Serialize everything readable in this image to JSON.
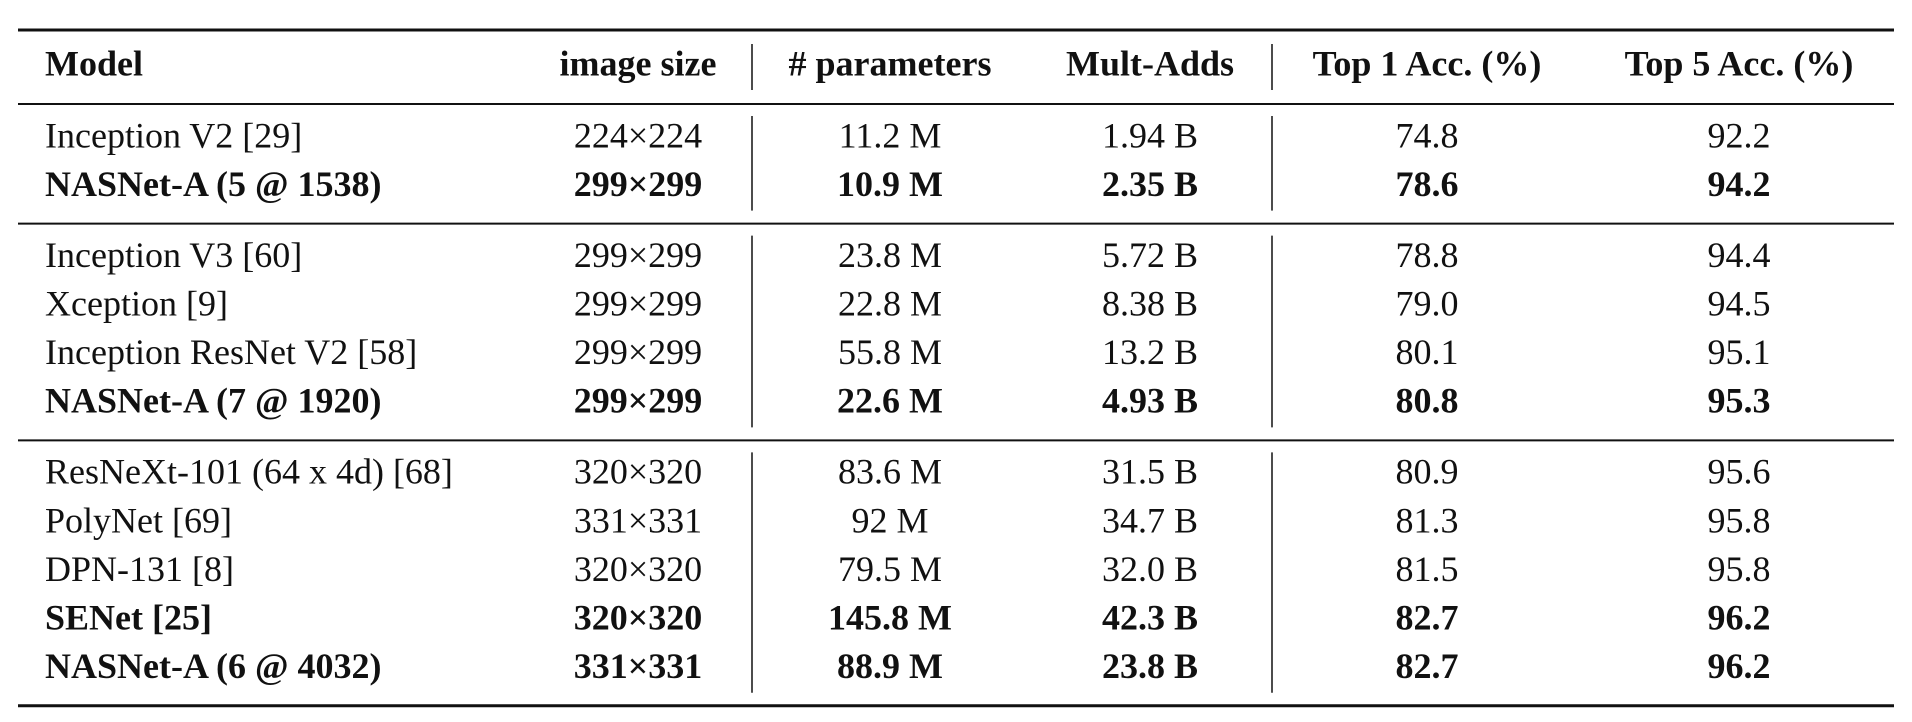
{
  "table": {
    "header": [
      "Model",
      "image size",
      "# parameters",
      "Mult-Adds",
      "Top 1 Acc. (%)",
      "Top 5 Acc. (%)"
    ],
    "groups": [
      [
        {
          "cells": [
            "Inception V2 [29]",
            "224×224",
            "11.2 M",
            "1.94 B",
            "74.8",
            "92.2"
          ],
          "bold": false
        },
        {
          "cells": [
            "NASNet-A (5 @ 1538)",
            "299×299",
            "10.9 M",
            "2.35 B",
            "78.6",
            "94.2"
          ],
          "bold": true
        }
      ],
      [
        {
          "cells": [
            "Inception V3 [60]",
            "299×299",
            "23.8 M",
            "5.72 B",
            "78.8",
            "94.4"
          ],
          "bold": false
        },
        {
          "cells": [
            "Xception [9]",
            "299×299",
            "22.8 M",
            "8.38 B",
            "79.0",
            "94.5"
          ],
          "bold": false
        },
        {
          "cells": [
            "Inception ResNet V2 [58]",
            "299×299",
            "55.8 M",
            "13.2 B",
            "80.1",
            "95.1"
          ],
          "bold": false
        },
        {
          "cells": [
            "NASNet-A (7 @ 1920)",
            "299×299",
            "22.6 M",
            "4.93 B",
            "80.8",
            "95.3"
          ],
          "bold": true
        }
      ],
      [
        {
          "cells": [
            "ResNeXt-101 (64 x 4d) [68]",
            "320×320",
            "83.6 M",
            "31.5 B",
            "80.9",
            "95.6"
          ],
          "bold": false
        },
        {
          "cells": [
            "PolyNet [69]",
            "331×331",
            "92 M",
            "34.7 B",
            "81.3",
            "95.8"
          ],
          "bold": false
        },
        {
          "cells": [
            "DPN-131 [8]",
            "320×320",
            "79.5 M",
            "32.0 B",
            "81.5",
            "95.8"
          ],
          "bold": false
        },
        {
          "cells": [
            "SENet [25]",
            "320×320",
            "145.8 M",
            "42.3 B",
            "82.7",
            "96.2"
          ],
          "bold": true
        },
        {
          "cells": [
            "NASNet-A (6 @ 4032)",
            "331×331",
            "88.9 M",
            "23.8 B",
            "82.7",
            "96.2"
          ],
          "bold": true
        }
      ]
    ]
  }
}
